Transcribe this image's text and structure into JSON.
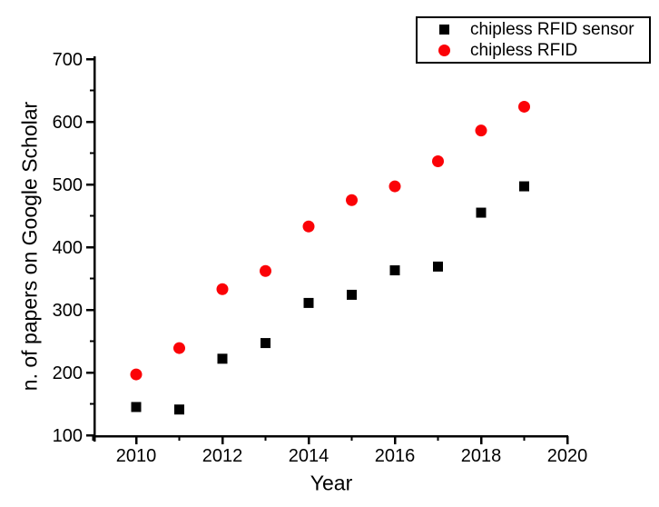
{
  "chart_data": {
    "type": "scatter",
    "title": "",
    "xlabel": "Year",
    "ylabel": "n. of papers on Google Scholar",
    "x": [
      2010,
      2011,
      2012,
      2013,
      2014,
      2015,
      2016,
      2017,
      2018,
      2019
    ],
    "series": [
      {
        "name": "chipless RFID sensor",
        "marker": "square",
        "color": "#000000",
        "values": [
          145,
          141,
          222,
          247,
          311,
          324,
          363,
          369,
          455,
          497
        ]
      },
      {
        "name": "chipless RFID",
        "marker": "circle",
        "color": "#fb0207",
        "values": [
          197,
          239,
          333,
          362,
          433,
          475,
          497,
          537,
          586,
          624
        ]
      }
    ],
    "xlim": [
      2009,
      2020
    ],
    "ylim": [
      100,
      700
    ],
    "xticks": [
      2010,
      2012,
      2014,
      2016,
      2018,
      2020
    ],
    "xminorticks": [
      2009,
      2011,
      2013,
      2015,
      2017,
      2019
    ],
    "yticks": [
      100,
      200,
      300,
      400,
      500,
      600,
      700
    ],
    "yminorticks": [
      150,
      250,
      350,
      450,
      550,
      650
    ],
    "grid": false,
    "legend_position": "top-right",
    "axis_color": "#000000",
    "background_color": "#ffffff"
  }
}
